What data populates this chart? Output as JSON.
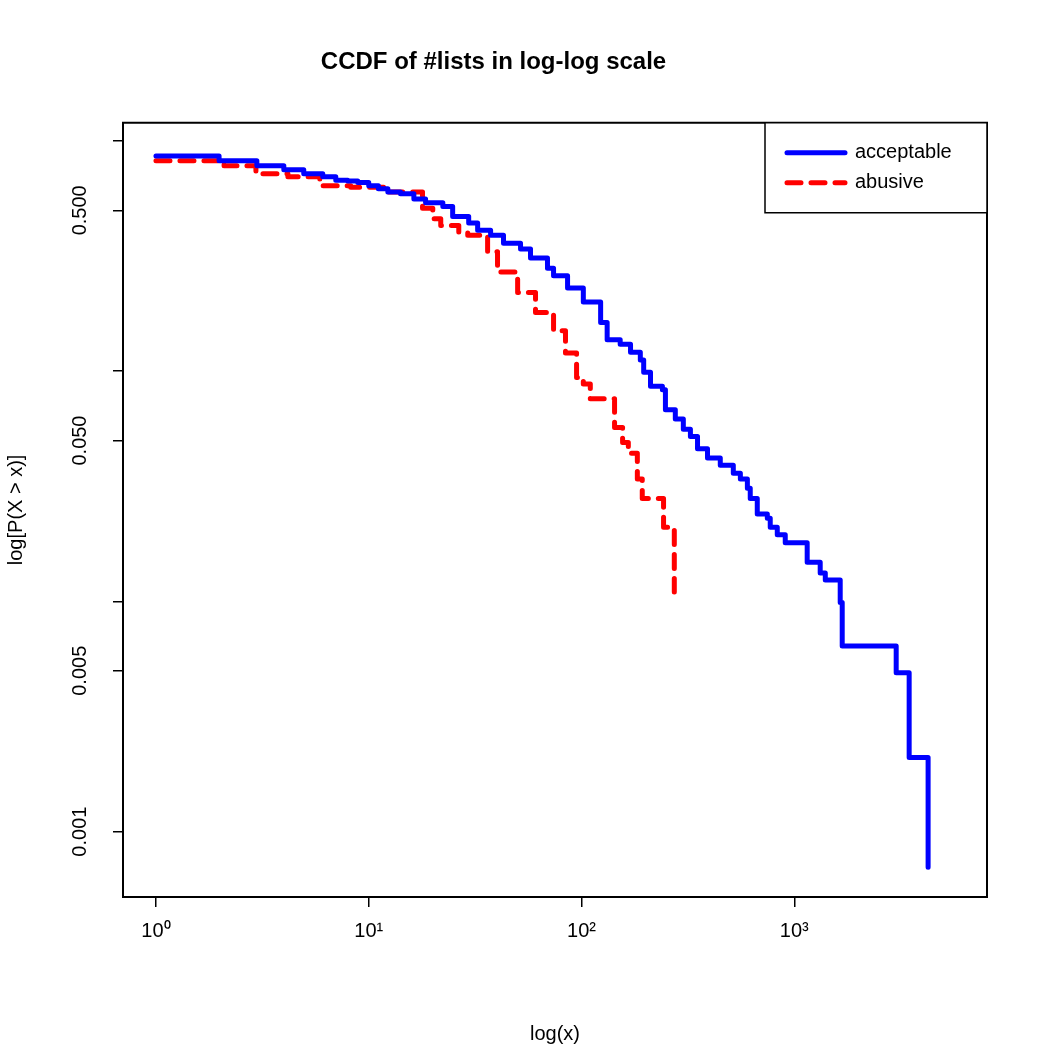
{
  "chart_data": {
    "type": "step",
    "title": "CCDF of #lists in log-log scale",
    "xlabel": "log(x)",
    "ylabel": "log[P(X > x)]",
    "log": "xy",
    "legend": "top right",
    "marker": "none",
    "xlim": [
      0.71,
      8050
    ],
    "xticks": [
      {
        "value": 1,
        "label": "10⁰"
      },
      {
        "value": 10,
        "label": "10¹"
      },
      {
        "value": 100,
        "label": "10²"
      },
      {
        "value": 1000,
        "label": "10³"
      }
    ],
    "ylim": [
      0.00052,
      1.2
    ],
    "yticks": [
      {
        "value": 1,
        "label": null
      },
      {
        "value": 0.5,
        "label": "0.500"
      },
      {
        "value": 0.1,
        "label": null
      },
      {
        "value": 0.05,
        "label": "0.050"
      },
      {
        "value": 0.01,
        "label": null
      },
      {
        "value": 0.005,
        "label": "0.005"
      },
      {
        "value": 0.001,
        "label": "0.001"
      }
    ],
    "series": [
      {
        "name": "acceptable",
        "color": "#0000ff",
        "line_style": "solid",
        "x": [
          1,
          1.98,
          2.98,
          3.99,
          4.95,
          6.08,
          7.0,
          7.97,
          8.88,
          10,
          11.1,
          12.3,
          14.1,
          16.3,
          18.5,
          22.3,
          24.8,
          29.5,
          32.5,
          37.4,
          43.0,
          51.7,
          57.6,
          69.2,
          73.9,
          86.0,
          102,
          123,
          132,
          152,
          170,
          189,
          196,
          211,
          240,
          248,
          276,
          301,
          325,
          351,
          391,
          449,
          517,
          558,
          602,
          621,
          670,
          747,
          771,
          832,
          907,
          1150,
          1324,
          1399,
          1644,
          1680,
          3013,
          3467,
          4256,
          4256
        ],
        "values": [
          0.86,
          0.82,
          0.78,
          0.75,
          0.72,
          0.7,
          0.675,
          0.67,
          0.66,
          0.64,
          0.62,
          0.6,
          0.59,
          0.56,
          0.54,
          0.52,
          0.47,
          0.44,
          0.41,
          0.39,
          0.36,
          0.34,
          0.31,
          0.28,
          0.26,
          0.23,
          0.2,
          0.163,
          0.137,
          0.131,
          0.121,
          0.112,
          0.099,
          0.086,
          0.083,
          0.068,
          0.062,
          0.056,
          0.052,
          0.046,
          0.042,
          0.039,
          0.036,
          0.034,
          0.031,
          0.028,
          0.024,
          0.023,
          0.021,
          0.0195,
          0.018,
          0.0148,
          0.0133,
          0.0124,
          0.0099,
          0.0064,
          0.0049,
          0.0021,
          0.0014,
          0.0007
        ]
      },
      {
        "name": "abusive",
        "color": "#ff0000",
        "line_style": "dashed",
        "x": [
          1,
          2.09,
          2.95,
          4.17,
          5.89,
          8.23,
          11.8,
          17.9,
          20.0,
          21.8,
          26.5,
          29.2,
          36.2,
          40.3,
          50.1,
          60.8,
          73.9,
          84.1,
          94.8,
          102,
          110,
          143,
          156,
          166,
          183,
          193,
          243,
          273
        ],
        "values": [
          0.82,
          0.78,
          0.72,
          0.7,
          0.64,
          0.63,
          0.6,
          0.51,
          0.46,
          0.43,
          0.4,
          0.39,
          0.33,
          0.27,
          0.22,
          0.18,
          0.15,
          0.12,
          0.094,
          0.088,
          0.076,
          0.057,
          0.049,
          0.044,
          0.034,
          0.028,
          0.021,
          0.011
        ]
      }
    ]
  }
}
